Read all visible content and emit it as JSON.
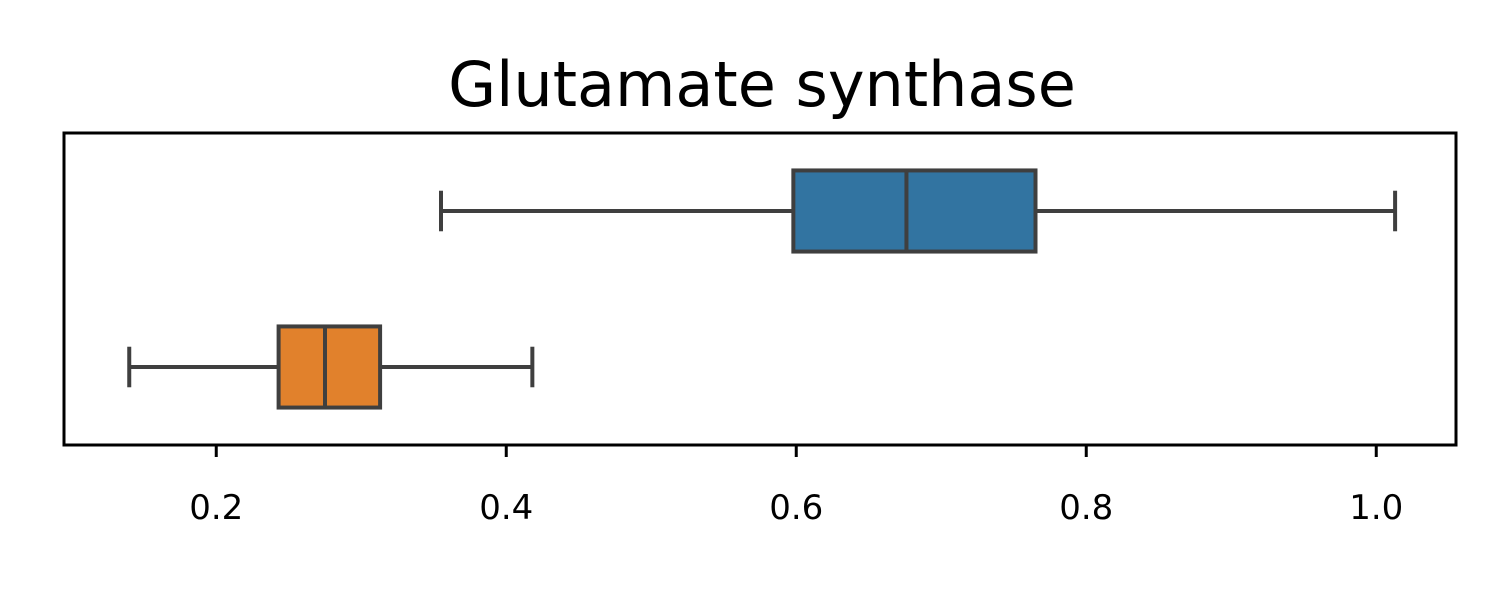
{
  "chart_data": {
    "type": "box",
    "orientation": "horizontal",
    "title": "Glutamate synthase",
    "xlabel": "",
    "ylabel": "",
    "xlim": [
      0.095,
      1.055
    ],
    "x_ticks": [
      0.2,
      0.4,
      0.6,
      0.8,
      1.0
    ],
    "x_tick_labels": [
      "0.2",
      "0.4",
      "0.6",
      "0.8",
      "1.0"
    ],
    "grid": false,
    "legend": "none",
    "series": [
      {
        "color": "#3274a1",
        "whisker_low": 0.355,
        "q1": 0.598,
        "median": 0.676,
        "q3": 0.765,
        "whisker_high": 1.013
      },
      {
        "color": "#e1812c",
        "whisker_low": 0.14,
        "q1": 0.243,
        "median": 0.275,
        "q3": 0.313,
        "whisker_high": 0.418
      }
    ],
    "line_color": "#3f3f3f"
  }
}
